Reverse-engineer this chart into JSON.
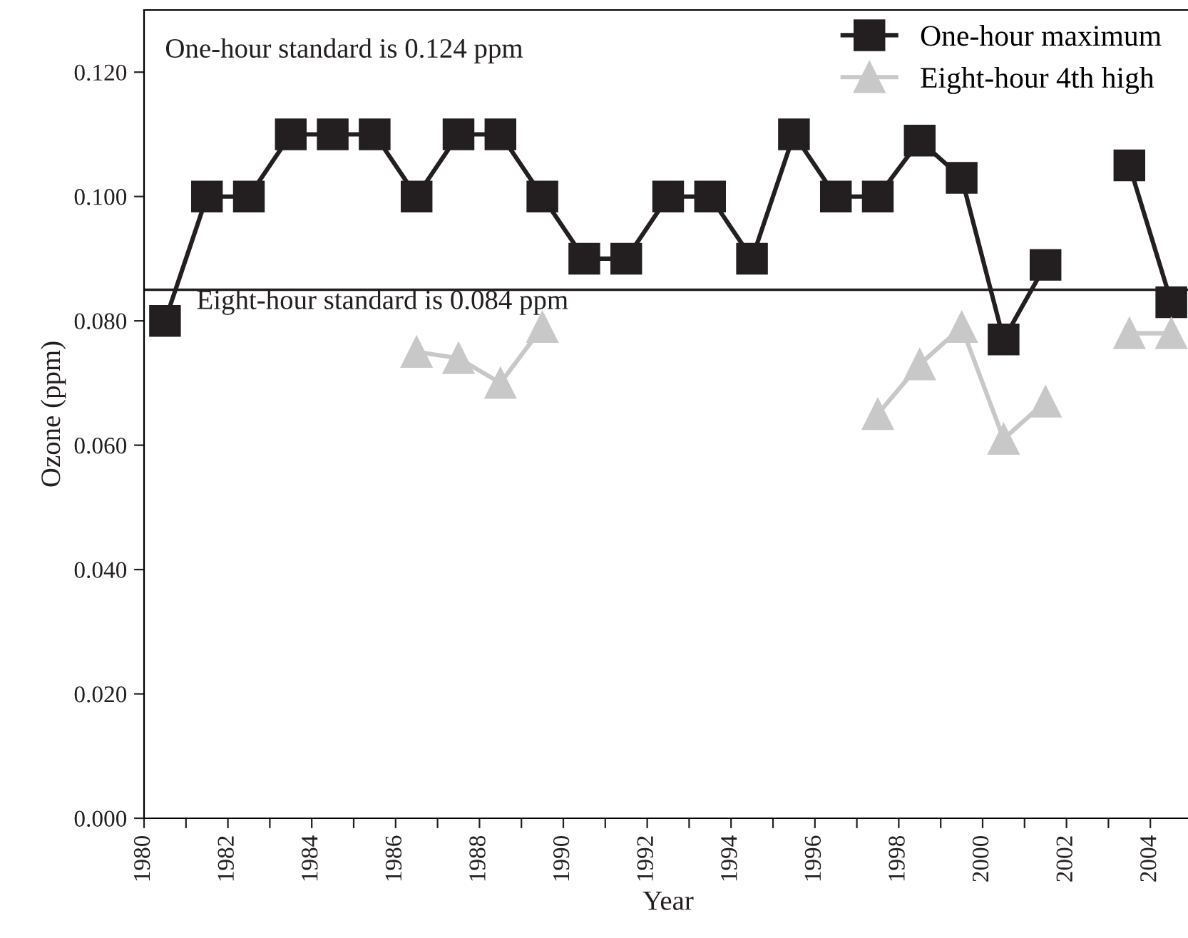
{
  "chart_data": {
    "type": "line",
    "xlabel": "Year",
    "ylabel": "Ozone (ppm)",
    "x": [
      1980.5,
      1981.5,
      1982.5,
      1983.5,
      1984.5,
      1985.5,
      1986.5,
      1987.5,
      1988.5,
      1989.5,
      1990.5,
      1991.5,
      1992.5,
      1993.5,
      1994.5,
      1995.5,
      1996.5,
      1997.5,
      1998.5,
      1999.5,
      2000.5,
      2001.5,
      2002.5,
      2003.5,
      2004.5
    ],
    "series": [
      {
        "name": "One-hour maximum",
        "color": "#231f20",
        "marker": "square",
        "values": [
          0.08,
          0.1,
          0.1,
          0.11,
          0.11,
          0.11,
          0.1,
          0.11,
          0.11,
          0.1,
          0.09,
          0.09,
          0.1,
          0.1,
          0.09,
          0.11,
          0.1,
          0.1,
          0.109,
          0.103,
          0.077,
          0.089,
          null,
          0.105,
          0.083
        ]
      },
      {
        "name": "Eight-hour 4th high",
        "color": "#c8c8c8",
        "marker": "triangle",
        "values": [
          null,
          null,
          null,
          null,
          null,
          null,
          0.075,
          0.074,
          0.07,
          0.079,
          null,
          null,
          null,
          null,
          null,
          null,
          null,
          0.065,
          0.073,
          0.079,
          0.061,
          0.067,
          null,
          0.078,
          0.078
        ]
      }
    ],
    "xlim": [
      1980,
      2005
    ],
    "xticks": [
      1980,
      {
        "value": 1981,
        "label": null
      },
      1982,
      {
        "value": 1983,
        "label": null
      },
      1984,
      {
        "value": 1985,
        "label": null
      },
      1986,
      {
        "value": 1987,
        "label": null
      },
      1988,
      {
        "value": 1989,
        "label": null
      },
      1990,
      {
        "value": 1991,
        "label": null
      },
      1992,
      {
        "value": 1993,
        "label": null
      },
      1994,
      {
        "value": 1995,
        "label": null
      },
      1996,
      {
        "value": 1997,
        "label": null
      },
      1998,
      {
        "value": 1999,
        "label": null
      },
      2000,
      {
        "value": 2001,
        "label": null
      },
      2002,
      {
        "value": 2003,
        "label": null
      },
      2004
    ],
    "ylim": [
      0,
      0.13
    ],
    "yticks": [
      {
        "value": 0,
        "label": "0.000"
      },
      {
        "value": 0.02,
        "label": "0.020"
      },
      {
        "value": 0.04,
        "label": "0.040"
      },
      {
        "value": 0.06,
        "label": "0.060"
      },
      {
        "value": 0.08,
        "label": "0.080"
      },
      {
        "value": 0.1,
        "label": "0.100"
      },
      {
        "value": 0.12,
        "label": "0.120"
      }
    ],
    "ref_lines": [
      {
        "axis": "y",
        "value": 0.085,
        "label": "Eight-hour standard is 0.084 ppm",
        "color": "#231f20"
      }
    ],
    "annotations": [
      "One-hour standard is 0.124 ppm"
    ],
    "grid": false,
    "legend": "top right",
    "line_style": "solid"
  }
}
